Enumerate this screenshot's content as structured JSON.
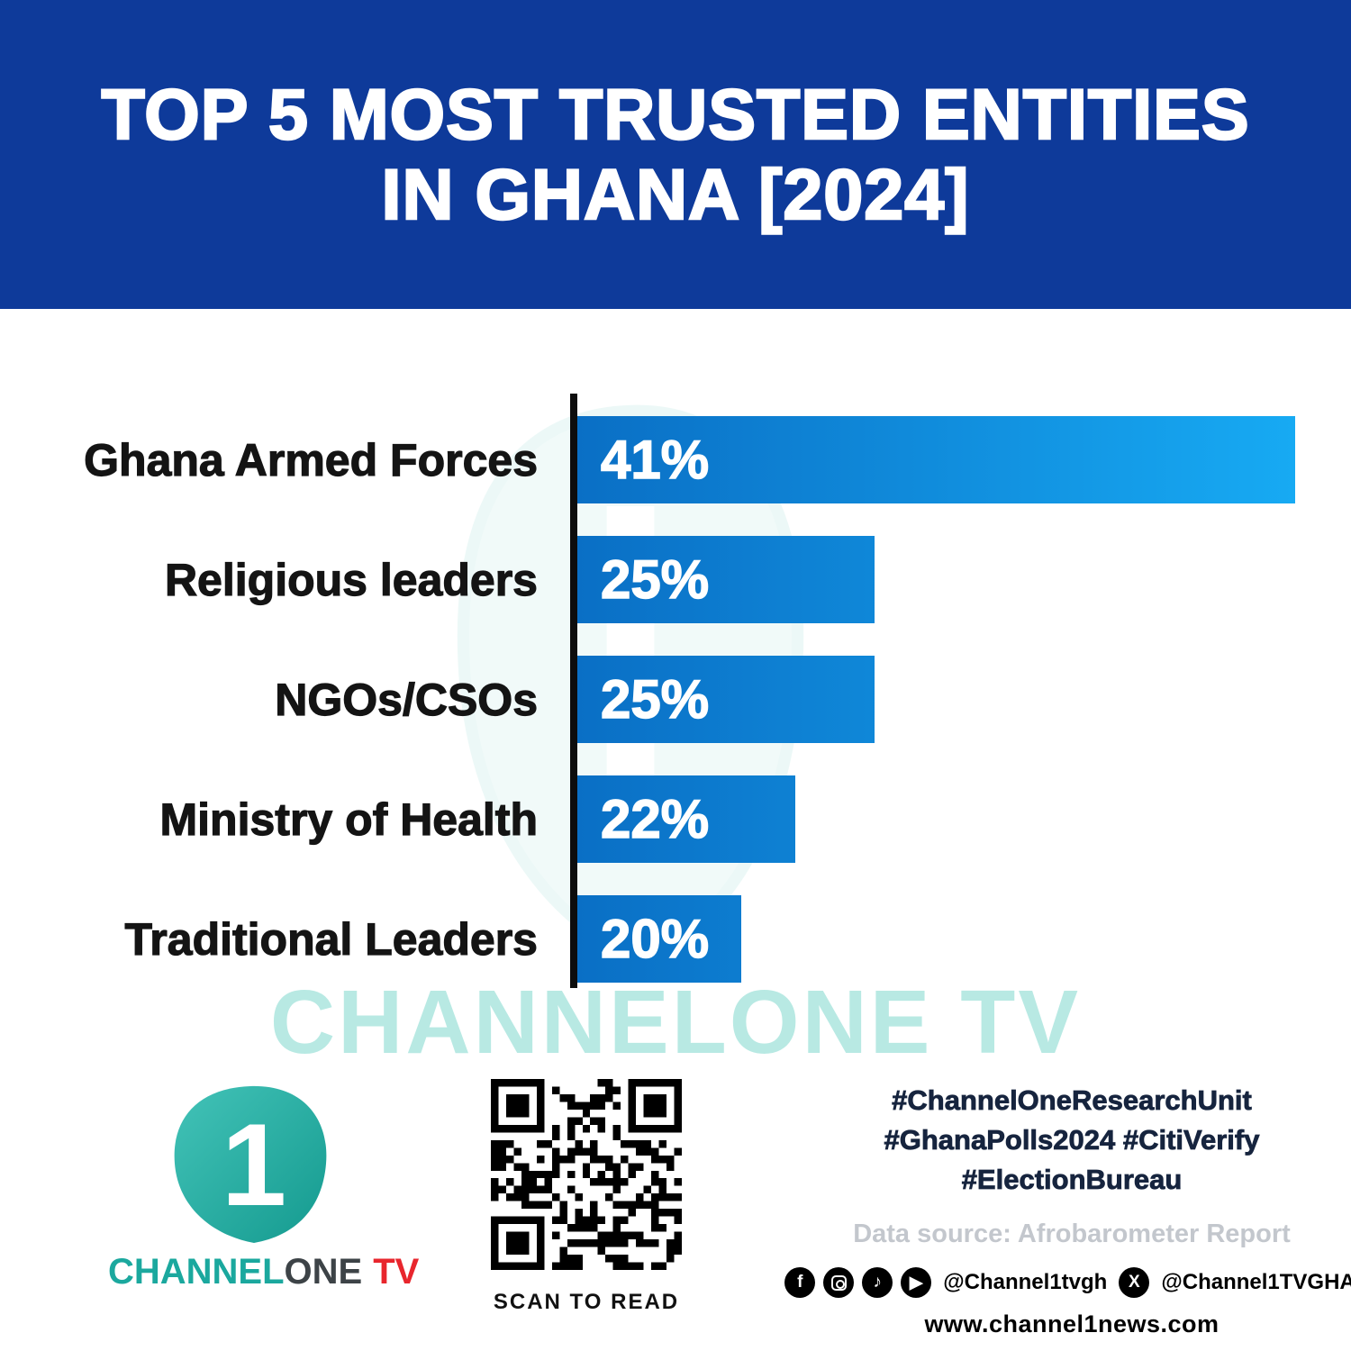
{
  "header": {
    "line1": "TOP 5 MOST TRUSTED ENTITIES",
    "line2": "IN GHANA [2024]"
  },
  "chart_data": {
    "type": "bar",
    "orientation": "horizontal",
    "title": "Top 5 Most Trusted Entities in Ghana [2024]",
    "categories": [
      "Ghana Armed Forces",
      "Religious leaders",
      "NGOs/CSOs",
      "Ministry of Health",
      "Traditional Leaders"
    ],
    "values": [
      41,
      25,
      25,
      22,
      20
    ],
    "value_labels": [
      "41%",
      "25%",
      "25%",
      "22%",
      "20%"
    ],
    "unit": "%",
    "xlim": [
      0,
      41
    ],
    "grid": false,
    "legend": "none",
    "bar_color_start": "#0a6fc5",
    "bar_color_end": "#17aaf3",
    "axis_color": "#0d0d0d",
    "visual_widths_pct": [
      100,
      41.4,
      41.4,
      30.4,
      22.8
    ]
  },
  "watermark": {
    "text": "CHANNELONE TV",
    "color": "#7fd8cd"
  },
  "footer": {
    "logo": {
      "mark": "1",
      "channel": "CHANNEL",
      "one": "ONE",
      "tv": "TV"
    },
    "qr_caption": "SCAN TO READ",
    "hashtags": [
      "#ChannelOneResearchUnit",
      "#GhanaPolls2024 #CitiVerify",
      "#ElectionBureau"
    ],
    "data_source": "Data source: Afrobarometer Report",
    "social": {
      "handle_primary": "@Channel1tvgh",
      "handle_x": "@Channel1TVGHA",
      "icons": {
        "facebook": "f",
        "tiktok": "♪",
        "youtube": "▶",
        "x": "X"
      }
    },
    "website": "www.channel1news.com"
  },
  "colors": {
    "header_bg": "#0e3a9a",
    "accent_teal": "#1ba89e",
    "tv_red": "#e8262d"
  }
}
